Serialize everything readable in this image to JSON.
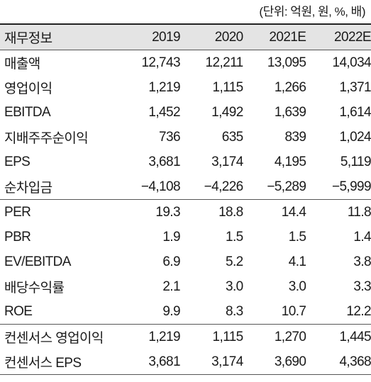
{
  "unit_note": "(단위: 억원, 원, %, 배)",
  "table": {
    "headers": [
      "재무정보",
      "2019",
      "2020",
      "2021E",
      "2022E"
    ],
    "rows": [
      [
        "매출액",
        "12,743",
        "12,211",
        "13,095",
        "14,034"
      ],
      [
        "영업이익",
        "1,219",
        "1,115",
        "1,266",
        "1,371"
      ],
      [
        "EBITDA",
        "1,452",
        "1,492",
        "1,639",
        "1,614"
      ],
      [
        "지배주주순이익",
        "736",
        "635",
        "839",
        "1,024"
      ],
      [
        "EPS",
        "3,681",
        "3,174",
        "4,195",
        "5,119"
      ],
      [
        "순차입금",
        "−4,108",
        "−4,226",
        "−5,289",
        "−5,999"
      ],
      [
        "PER",
        "19.3",
        "18.8",
        "14.4",
        "11.8"
      ],
      [
        "PBR",
        "1.9",
        "1.5",
        "1.5",
        "1.4"
      ],
      [
        "EV/EBITDA",
        "6.9",
        "5.2",
        "4.1",
        "3.8"
      ],
      [
        "배당수익률",
        "2.1",
        "3.0",
        "3.0",
        "3.3"
      ],
      [
        "ROE",
        "9.9",
        "8.3",
        "10.7",
        "12.2"
      ],
      [
        "컨센서스 영업이익",
        "1,219",
        "1,115",
        "1,270",
        "1,445"
      ],
      [
        "컨센서스 EPS",
        "3,681",
        "3,174",
        "3,690",
        "4,368"
      ]
    ]
  }
}
